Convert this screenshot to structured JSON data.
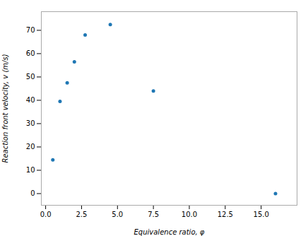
{
  "chart_data": {
    "type": "scatter",
    "x": [
      0.5,
      1.0,
      1.5,
      2.0,
      2.75,
      4.5,
      7.5,
      16.0
    ],
    "values": [
      14.5,
      39.5,
      47.5,
      56.5,
      68.0,
      72.5,
      44.0,
      0.0
    ],
    "color": "#1f77b4",
    "marker": "point",
    "xlabel": "Equivalence ratio, φ",
    "ylabel": "Reaction front velocity, v (m/s)",
    "xlim": [
      -0.3,
      17.5
    ],
    "ylim": [
      -5,
      78
    ],
    "xticks": [
      {
        "value": 0,
        "label": "0.0"
      },
      2.5,
      {
        "value": 5,
        "label": "5.0"
      },
      7.5,
      {
        "value": 10,
        "label": "10.0"
      },
      12.5,
      {
        "value": 15,
        "label": "15.0"
      }
    ],
    "yticks": [
      0,
      10,
      20,
      30,
      40,
      50,
      60,
      70
    ],
    "grid": false
  }
}
